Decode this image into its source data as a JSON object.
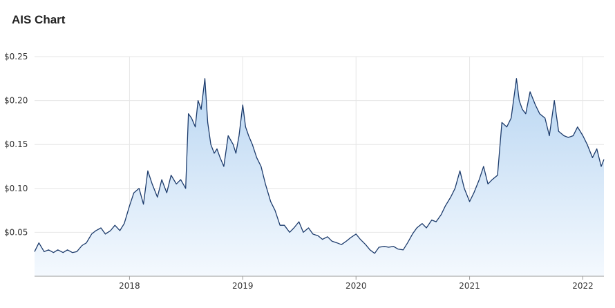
{
  "title": "AIS Chart",
  "colors": {
    "line": "#1b3a6b",
    "fill_top": "#b9d6f2",
    "fill_bottom": "#f4f9fe",
    "grid": "#e6e6e6",
    "axis": "#999999"
  },
  "chart_data": {
    "type": "area",
    "title": "AIS Chart",
    "xlabel": "",
    "ylabel": "",
    "ylim": [
      0,
      0.25
    ],
    "xlim": [
      "2017-03-01",
      "2022-03-10"
    ],
    "y_ticks": [
      0.05,
      0.1,
      0.15,
      0.2,
      0.25
    ],
    "y_tick_labels": [
      "$0.05",
      "$0.10",
      "$0.15",
      "$0.20",
      "$0.25"
    ],
    "x_ticks": [
      "2018-01-01",
      "2019-01-01",
      "2020-01-01",
      "2021-01-01",
      "2022-01-01"
    ],
    "x_tick_labels": [
      "2018",
      "2019",
      "2020",
      "2021",
      "2022"
    ],
    "grid": true,
    "series": [
      {
        "x": [
          "2017-03-01",
          "2017-03-15",
          "2017-04-01",
          "2017-04-15",
          "2017-05-01",
          "2017-05-15",
          "2017-06-01",
          "2017-06-15",
          "2017-07-01",
          "2017-07-15",
          "2017-08-01",
          "2017-08-15",
          "2017-09-01",
          "2017-09-15",
          "2017-10-01",
          "2017-10-15",
          "2017-11-01",
          "2017-11-15",
          "2017-12-01",
          "2017-12-15",
          "2018-01-01",
          "2018-01-15",
          "2018-02-01",
          "2018-02-15",
          "2018-03-01",
          "2018-03-15",
          "2018-04-01",
          "2018-04-15",
          "2018-05-01",
          "2018-05-15",
          "2018-06-01",
          "2018-06-15",
          "2018-07-01",
          "2018-07-10",
          "2018-07-20",
          "2018-08-01",
          "2018-08-10",
          "2018-08-20",
          "2018-09-01",
          "2018-09-10",
          "2018-09-20",
          "2018-10-01",
          "2018-10-10",
          "2018-10-20",
          "2018-11-01",
          "2018-11-15",
          "2018-12-01",
          "2018-12-10",
          "2018-12-20",
          "2019-01-01",
          "2019-01-10",
          "2019-01-20",
          "2019-02-01",
          "2019-02-15",
          "2019-03-01",
          "2019-03-15",
          "2019-04-01",
          "2019-04-15",
          "2019-05-01",
          "2019-05-15",
          "2019-06-01",
          "2019-06-15",
          "2019-07-01",
          "2019-07-15",
          "2019-08-01",
          "2019-08-15",
          "2019-09-01",
          "2019-09-15",
          "2019-10-01",
          "2019-10-15",
          "2019-11-01",
          "2019-11-15",
          "2019-12-01",
          "2019-12-15",
          "2020-01-01",
          "2020-01-15",
          "2020-02-01",
          "2020-02-15",
          "2020-03-01",
          "2020-03-15",
          "2020-04-01",
          "2020-04-15",
          "2020-05-01",
          "2020-05-15",
          "2020-06-01",
          "2020-06-15",
          "2020-07-01",
          "2020-07-15",
          "2020-08-01",
          "2020-08-15",
          "2020-09-01",
          "2020-09-15",
          "2020-10-01",
          "2020-10-15",
          "2020-11-01",
          "2020-11-15",
          "2020-12-01",
          "2020-12-15",
          "2021-01-01",
          "2021-01-15",
          "2021-02-01",
          "2021-02-15",
          "2021-03-01",
          "2021-03-15",
          "2021-04-01",
          "2021-04-15",
          "2021-05-01",
          "2021-05-15",
          "2021-06-01",
          "2021-06-10",
          "2021-06-20",
          "2021-07-01",
          "2021-07-15",
          "2021-08-01",
          "2021-08-15",
          "2021-09-01",
          "2021-09-15",
          "2021-10-01",
          "2021-10-15",
          "2021-11-01",
          "2021-11-15",
          "2021-12-01",
          "2021-12-15",
          "2022-01-01",
          "2022-01-15",
          "2022-02-01",
          "2022-02-15",
          "2022-03-01",
          "2022-03-10"
        ],
        "values": [
          0.028,
          0.038,
          0.028,
          0.03,
          0.027,
          0.03,
          0.027,
          0.03,
          0.027,
          0.028,
          0.035,
          0.038,
          0.048,
          0.052,
          0.055,
          0.048,
          0.052,
          0.058,
          0.052,
          0.06,
          0.08,
          0.095,
          0.1,
          0.082,
          0.12,
          0.105,
          0.09,
          0.11,
          0.095,
          0.115,
          0.105,
          0.11,
          0.1,
          0.185,
          0.18,
          0.17,
          0.2,
          0.19,
          0.225,
          0.175,
          0.15,
          0.14,
          0.145,
          0.135,
          0.125,
          0.16,
          0.15,
          0.14,
          0.16,
          0.195,
          0.17,
          0.16,
          0.15,
          0.135,
          0.125,
          0.105,
          0.085,
          0.075,
          0.058,
          0.058,
          0.05,
          0.055,
          0.062,
          0.05,
          0.055,
          0.048,
          0.046,
          0.042,
          0.045,
          0.04,
          0.038,
          0.036,
          0.04,
          0.044,
          0.048,
          0.042,
          0.036,
          0.03,
          0.026,
          0.033,
          0.034,
          0.033,
          0.034,
          0.031,
          0.03,
          0.038,
          0.048,
          0.055,
          0.06,
          0.055,
          0.064,
          0.062,
          0.07,
          0.08,
          0.09,
          0.1,
          0.12,
          0.1,
          0.085,
          0.095,
          0.11,
          0.125,
          0.105,
          0.11,
          0.115,
          0.175,
          0.17,
          0.18,
          0.225,
          0.2,
          0.19,
          0.185,
          0.21,
          0.195,
          0.185,
          0.18,
          0.16,
          0.2,
          0.165,
          0.16,
          0.158,
          0.16,
          0.17,
          0.16,
          0.15,
          0.135,
          0.145,
          0.125,
          0.133
        ]
      }
    ]
  }
}
